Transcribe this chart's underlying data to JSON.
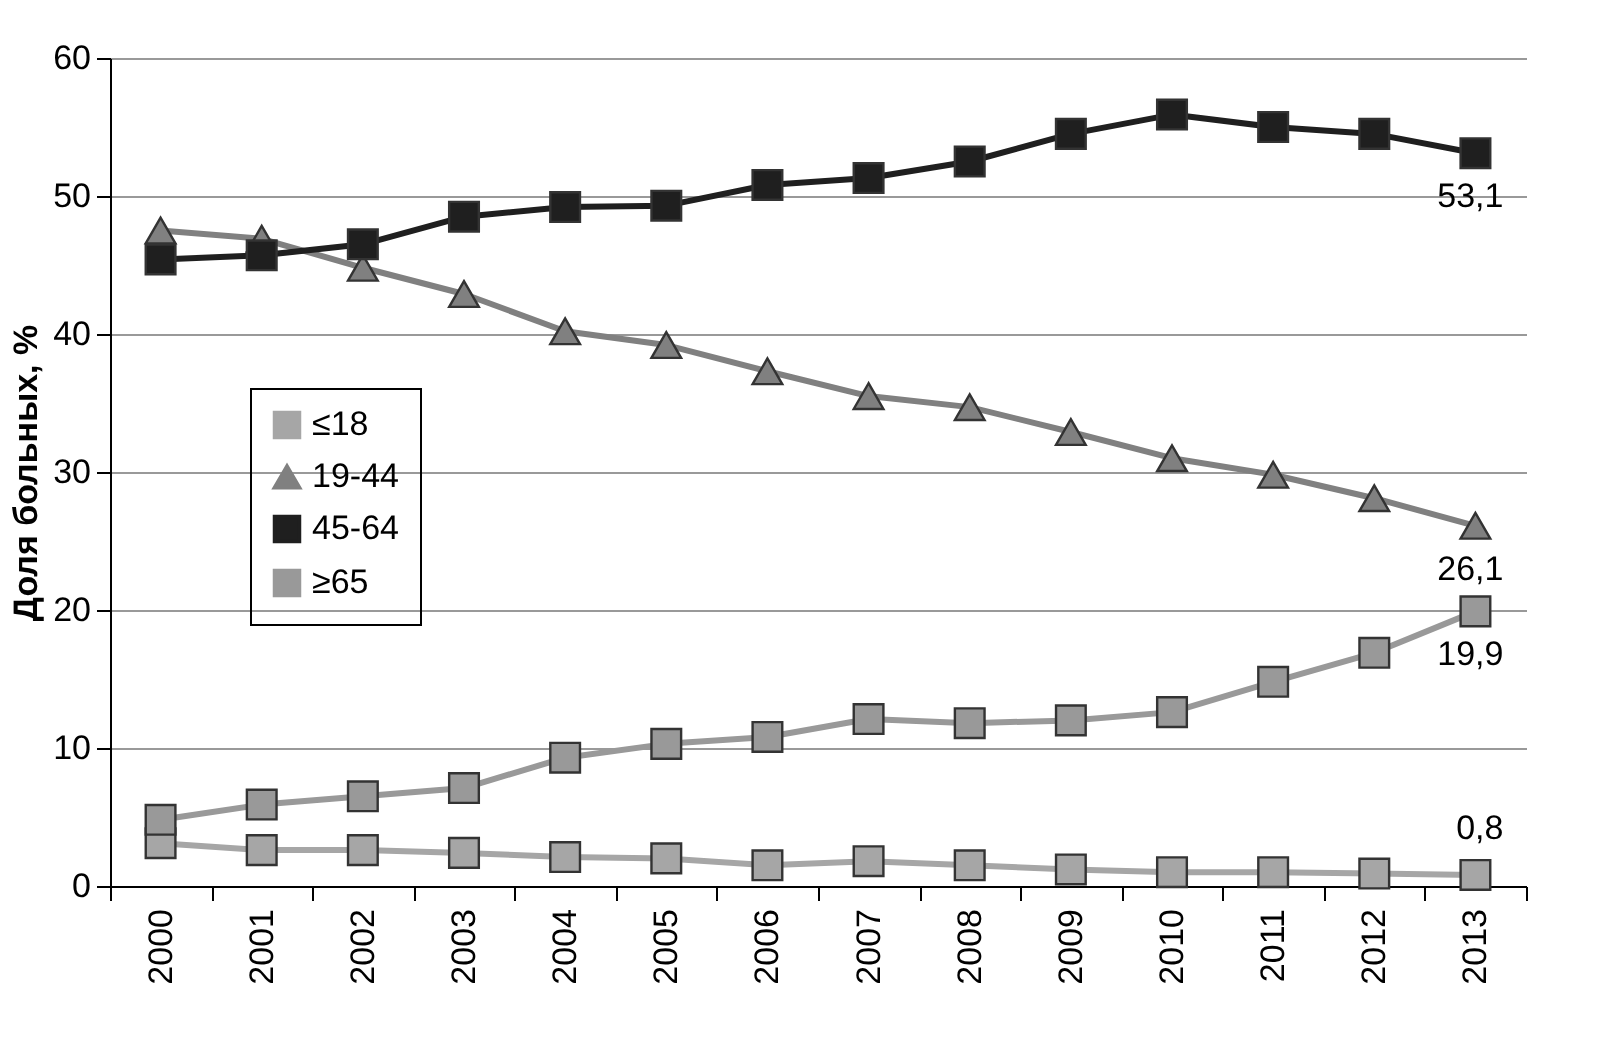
{
  "chart_data": {
    "type": "line",
    "ylabel": "Доля больных, %",
    "categories": [
      "2000",
      "2001",
      "2002",
      "2003",
      "2004",
      "2005",
      "2006",
      "2007",
      "2008",
      "2009",
      "2010",
      "2011",
      "2012",
      "2013"
    ],
    "series": [
      {
        "name": "≤18",
        "color": "#a6a6a6",
        "marker": "square",
        "values": [
          3.1,
          2.6,
          2.6,
          2.4,
          2.1,
          2.0,
          1.5,
          1.8,
          1.5,
          1.2,
          1.0,
          1.0,
          0.9,
          0.8
        ],
        "value_labels": [
          null,
          null,
          null,
          null,
          null,
          null,
          null,
          null,
          null,
          null,
          null,
          null,
          null,
          "0,8"
        ]
      },
      {
        "name": "19-44",
        "color": "#808080",
        "marker": "triangle",
        "values": [
          47.5,
          46.9,
          44.8,
          42.9,
          40.2,
          39.2,
          37.3,
          35.5,
          34.7,
          32.9,
          31.0,
          29.8,
          28.1,
          26.1
        ],
        "value_labels": [
          null,
          null,
          null,
          null,
          null,
          null,
          null,
          null,
          null,
          null,
          null,
          null,
          null,
          "26,1"
        ]
      },
      {
        "name": "45-64",
        "color": "#1f1f1f",
        "marker": "square",
        "values": [
          45.4,
          45.7,
          46.5,
          48.5,
          49.2,
          49.3,
          50.8,
          51.3,
          52.5,
          54.5,
          55.9,
          55.0,
          54.5,
          53.1
        ],
        "value_labels": [
          null,
          null,
          null,
          null,
          null,
          null,
          null,
          null,
          null,
          null,
          null,
          null,
          null,
          "53,1"
        ]
      },
      {
        "name": "≥65",
        "color": "#999999",
        "marker": "square",
        "values": [
          4.8,
          5.9,
          6.5,
          7.1,
          9.3,
          10.3,
          10.8,
          12.1,
          11.8,
          12.0,
          12.6,
          14.8,
          16.9,
          19.9
        ],
        "value_labels": [
          null,
          null,
          null,
          null,
          null,
          null,
          null,
          null,
          null,
          null,
          null,
          null,
          null,
          "19,9"
        ]
      }
    ],
    "ylim": [
      0,
      60
    ],
    "yticks": [
      0,
      10,
      20,
      30,
      40,
      50,
      60
    ],
    "grid": "y",
    "legend": "left"
  }
}
